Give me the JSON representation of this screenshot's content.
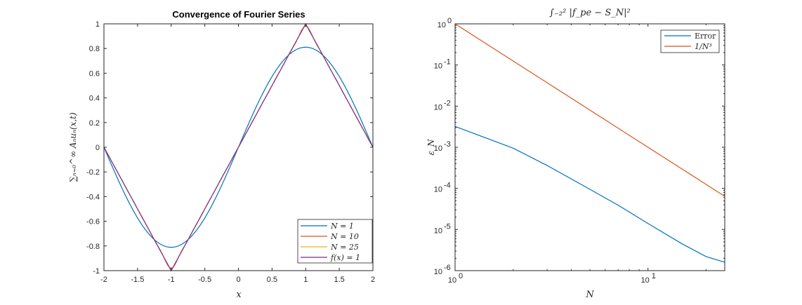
{
  "chart_data": [
    {
      "type": "line",
      "title": "Convergence of Fourier Series",
      "xlabel": "x",
      "ylabel": "∑ₙ₌₀^∞ Aₙuₙ(x,t)",
      "xlim": [
        -2,
        2
      ],
      "ylim": [
        -1,
        1
      ],
      "xticks": [
        "-2",
        "-1.5",
        "-1",
        "-0.5",
        "0",
        "0.5",
        "1",
        "1.5",
        "2"
      ],
      "yticks": [
        "-1",
        "-0.8",
        "-0.6",
        "-0.4",
        "-0.2",
        "0",
        "0.2",
        "0.4",
        "0.6",
        "0.8",
        "1"
      ],
      "grid": false,
      "legend_position": "bottom-right",
      "series": [
        {
          "name": "N = 1",
          "color": "#0072BD",
          "kind": "fourier",
          "terms": 1
        },
        {
          "name": "N = 10",
          "color": "#D95319",
          "kind": "fourier",
          "terms": 10
        },
        {
          "name": "N = 25",
          "color": "#EDB120",
          "kind": "fourier",
          "terms": 25
        },
        {
          "name": "f(x) = 1",
          "color": "#7E2F8E",
          "kind": "triangle"
        }
      ]
    },
    {
      "type": "line",
      "title": "∫₋₂² |f_pe − S_N|²",
      "xlabel": "N",
      "ylabel": "ε_N",
      "xscale": "log",
      "yscale": "log",
      "xlim": [
        1,
        25
      ],
      "ylim": [
        1e-06,
        1
      ],
      "xticks": [
        {
          "base": "10",
          "exp": "0"
        },
        {
          "base": "10",
          "exp": "1"
        }
      ],
      "yticks": [
        {
          "base": "10",
          "exp": "0"
        },
        {
          "base": "10",
          "exp": "-1"
        },
        {
          "base": "10",
          "exp": "-2"
        },
        {
          "base": "10",
          "exp": "-3"
        },
        {
          "base": "10",
          "exp": "-4"
        },
        {
          "base": "10",
          "exp": "-5"
        },
        {
          "base": "10",
          "exp": "-6"
        }
      ],
      "grid": false,
      "legend_position": "top-right",
      "series": [
        {
          "name": "Error",
          "color": "#0072BD",
          "x": [
            1,
            2,
            3,
            5,
            7,
            10,
            15,
            20,
            25
          ],
          "y": [
            0.0032,
            0.00095,
            0.00036,
            9.5e-05,
            3.9e-05,
            1.4e-05,
            4.5e-06,
            2.2e-06,
            1.6e-06
          ]
        },
        {
          "name": "1/N³",
          "color": "#D95319",
          "x": [
            1,
            25
          ],
          "y": [
            1,
            6.4e-05
          ]
        }
      ]
    }
  ]
}
